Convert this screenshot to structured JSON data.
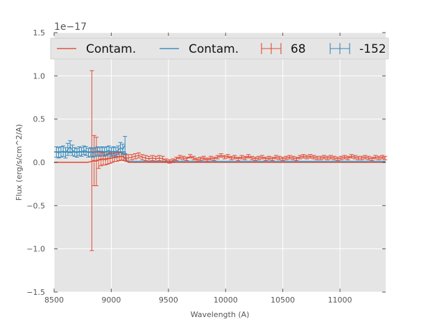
{
  "chart_data": {
    "type": "line",
    "title": "",
    "xlabel": "Wavelength (A)",
    "ylabel": "Flux (erg/s/cm^2/A)",
    "offset_label": "1e−17",
    "xlim": [
      8500,
      11400
    ],
    "ylim": [
      -1.5,
      1.5
    ],
    "x_ticks": [
      8500,
      9000,
      9500,
      10000,
      10500,
      11000
    ],
    "x_tick_labels": [
      "8500",
      "9000",
      "9500",
      "10000",
      "10500",
      "11000"
    ],
    "y_ticks": [
      -1.5,
      -1.0,
      -0.5,
      0.0,
      0.5,
      1.0,
      1.5
    ],
    "y_tick_labels": [
      "−1.5",
      "−1.0",
      "−0.5",
      "0.0",
      "0.5",
      "1.0",
      "1.5"
    ],
    "grid": true,
    "legend_position": "top",
    "legend": [
      {
        "label": "Contam.",
        "kind": "line",
        "color": "#e24a33"
      },
      {
        "label": "Contam.",
        "kind": "line",
        "color": "#348abd"
      },
      {
        "label": "68",
        "kind": "errorbar",
        "color": "#e24a33"
      },
      {
        "label": "-152",
        "kind": "errorbar",
        "color": "#348abd"
      }
    ],
    "colors": {
      "red": "#e24a33",
      "blue": "#348abd",
      "plot_bg": "#e5e5e5",
      "grid": "#ffffff"
    },
    "series": [
      {
        "legend_label": "Contam.",
        "kind": "line",
        "color": "#e24a33",
        "points": [
          [
            8500,
            0.0
          ],
          [
            8790,
            0.0
          ],
          [
            8830,
            0.01
          ],
          [
            8900,
            0.03
          ],
          [
            9000,
            0.05
          ],
          [
            9100,
            0.07
          ],
          [
            9150,
            0.0
          ],
          [
            11400,
            0.0
          ]
        ]
      },
      {
        "legend_label": "Contam.",
        "kind": "line",
        "color": "#348abd",
        "points": [
          [
            8500,
            0.12
          ],
          [
            8700,
            0.12
          ],
          [
            9000,
            0.12
          ],
          [
            9120,
            0.12
          ],
          [
            9135,
            0.01
          ],
          [
            11400,
            0.01
          ]
        ]
      },
      {
        "legend_label": "68",
        "kind": "errorbar",
        "color": "#e24a33",
        "points": [
          [
            8830,
            0.02,
            1.04
          ],
          [
            8850,
            0.02,
            0.29
          ],
          [
            8870,
            0.01,
            0.28
          ],
          [
            8890,
            0.03,
            0.1
          ],
          [
            8910,
            0.04,
            0.08
          ],
          [
            8930,
            0.04,
            0.07
          ],
          [
            8950,
            0.03,
            0.06
          ],
          [
            8970,
            0.04,
            0.06
          ],
          [
            8990,
            0.05,
            0.06
          ],
          [
            9010,
            0.05,
            0.05
          ],
          [
            9030,
            0.06,
            0.05
          ],
          [
            9050,
            0.06,
            0.05
          ],
          [
            9070,
            0.07,
            0.05
          ],
          [
            9090,
            0.07,
            0.04
          ],
          [
            9110,
            0.06,
            0.04
          ],
          [
            9130,
            0.05,
            0.04
          ],
          [
            9150,
            0.05,
            0.04
          ],
          [
            9180,
            0.06,
            0.03
          ],
          [
            9210,
            0.07,
            0.03
          ],
          [
            9240,
            0.08,
            0.03
          ],
          [
            9270,
            0.06,
            0.03
          ],
          [
            9300,
            0.05,
            0.03
          ],
          [
            9330,
            0.04,
            0.03
          ],
          [
            9360,
            0.05,
            0.03
          ],
          [
            9390,
            0.04,
            0.03
          ],
          [
            9420,
            0.05,
            0.03
          ],
          [
            9450,
            0.04,
            0.03
          ],
          [
            9480,
            0.02,
            0.02
          ],
          [
            9510,
            0.01,
            0.02
          ],
          [
            9540,
            0.02,
            0.02
          ],
          [
            9570,
            0.04,
            0.02
          ],
          [
            9600,
            0.06,
            0.02
          ],
          [
            9630,
            0.05,
            0.02
          ],
          [
            9660,
            0.04,
            0.02
          ],
          [
            9690,
            0.07,
            0.02
          ],
          [
            9720,
            0.05,
            0.02
          ],
          [
            9750,
            0.03,
            0.02
          ],
          [
            9780,
            0.04,
            0.02
          ],
          [
            9810,
            0.05,
            0.02
          ],
          [
            9840,
            0.03,
            0.02
          ],
          [
            9870,
            0.05,
            0.02
          ],
          [
            9900,
            0.04,
            0.02
          ],
          [
            9930,
            0.06,
            0.02
          ],
          [
            9960,
            0.08,
            0.02
          ],
          [
            9990,
            0.06,
            0.02
          ],
          [
            10020,
            0.07,
            0.02
          ],
          [
            10050,
            0.05,
            0.02
          ],
          [
            10080,
            0.06,
            0.02
          ],
          [
            10110,
            0.04,
            0.02
          ],
          [
            10140,
            0.06,
            0.02
          ],
          [
            10170,
            0.05,
            0.02
          ],
          [
            10200,
            0.07,
            0.02
          ],
          [
            10230,
            0.05,
            0.02
          ],
          [
            10260,
            0.04,
            0.02
          ],
          [
            10290,
            0.05,
            0.02
          ],
          [
            10320,
            0.06,
            0.02
          ],
          [
            10350,
            0.04,
            0.02
          ],
          [
            10380,
            0.05,
            0.02
          ],
          [
            10410,
            0.04,
            0.02
          ],
          [
            10440,
            0.06,
            0.02
          ],
          [
            10470,
            0.05,
            0.02
          ],
          [
            10500,
            0.04,
            0.02
          ],
          [
            10530,
            0.05,
            0.02
          ],
          [
            10560,
            0.06,
            0.02
          ],
          [
            10590,
            0.05,
            0.02
          ],
          [
            10620,
            0.04,
            0.02
          ],
          [
            10650,
            0.06,
            0.02
          ],
          [
            10680,
            0.07,
            0.02
          ],
          [
            10710,
            0.06,
            0.02
          ],
          [
            10740,
            0.07,
            0.02
          ],
          [
            10770,
            0.06,
            0.02
          ],
          [
            10800,
            0.05,
            0.02
          ],
          [
            10830,
            0.05,
            0.02
          ],
          [
            10860,
            0.06,
            0.02
          ],
          [
            10890,
            0.05,
            0.02
          ],
          [
            10920,
            0.06,
            0.02
          ],
          [
            10950,
            0.05,
            0.02
          ],
          [
            10980,
            0.04,
            0.02
          ],
          [
            11010,
            0.05,
            0.02
          ],
          [
            11040,
            0.06,
            0.02
          ],
          [
            11070,
            0.05,
            0.02
          ],
          [
            11100,
            0.07,
            0.02
          ],
          [
            11130,
            0.06,
            0.02
          ],
          [
            11160,
            0.05,
            0.02
          ],
          [
            11190,
            0.05,
            0.02
          ],
          [
            11220,
            0.06,
            0.02
          ],
          [
            11250,
            0.05,
            0.02
          ],
          [
            11280,
            0.04,
            0.02
          ],
          [
            11310,
            0.06,
            0.02
          ],
          [
            11340,
            0.05,
            0.02
          ],
          [
            11370,
            0.06,
            0.02
          ],
          [
            11395,
            0.05,
            0.02
          ]
        ]
      },
      {
        "legend_label": "-152",
        "kind": "errorbar",
        "color": "#348abd",
        "points": [
          [
            8520,
            0.12,
            0.06
          ],
          [
            8540,
            0.11,
            0.06
          ],
          [
            8560,
            0.12,
            0.06
          ],
          [
            8580,
            0.13,
            0.06
          ],
          [
            8600,
            0.11,
            0.06
          ],
          [
            8620,
            0.15,
            0.07
          ],
          [
            8640,
            0.18,
            0.07
          ],
          [
            8660,
            0.14,
            0.06
          ],
          [
            8680,
            0.12,
            0.05
          ],
          [
            8700,
            0.11,
            0.05
          ],
          [
            8720,
            0.13,
            0.05
          ],
          [
            8740,
            0.12,
            0.05
          ],
          [
            8760,
            0.14,
            0.05
          ],
          [
            8780,
            0.13,
            0.05
          ],
          [
            8800,
            0.11,
            0.05
          ],
          [
            8820,
            0.12,
            0.05
          ],
          [
            8840,
            0.11,
            0.05
          ],
          [
            8860,
            0.12,
            0.05
          ],
          [
            8880,
            0.13,
            0.05
          ],
          [
            8900,
            0.12,
            0.05
          ],
          [
            8920,
            0.13,
            0.05
          ],
          [
            8940,
            0.12,
            0.05
          ],
          [
            8960,
            0.13,
            0.05
          ],
          [
            8980,
            0.14,
            0.05
          ],
          [
            9000,
            0.12,
            0.05
          ],
          [
            9020,
            0.13,
            0.05
          ],
          [
            9040,
            0.12,
            0.05
          ],
          [
            9060,
            0.14,
            0.05
          ],
          [
            9080,
            0.17,
            0.06
          ],
          [
            9100,
            0.15,
            0.06
          ],
          [
            9120,
            0.2,
            0.1
          ]
        ]
      }
    ]
  }
}
